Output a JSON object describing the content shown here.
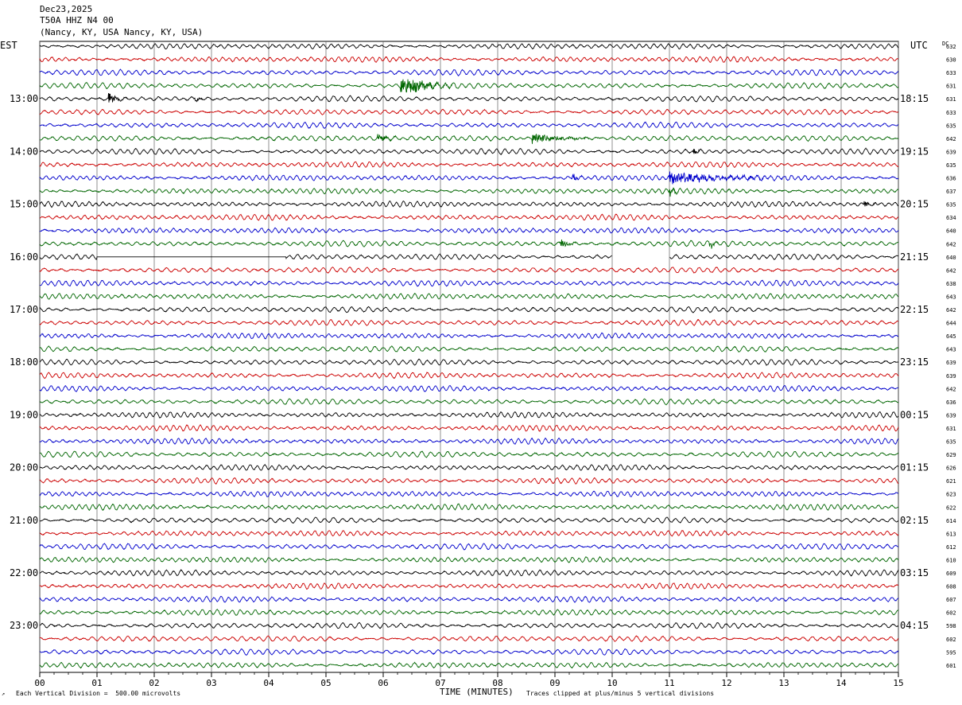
{
  "header": {
    "date": "Dec23,2025",
    "station": "T50A HHZ N4 00",
    "location": "(Nancy, KY, USA Nancy, KY, USA)"
  },
  "left_axis_label": "EST",
  "right_axis_label": "UTC",
  "dc_label": "DC",
  "footer": {
    "scale_note": "Each Vertical Division =  500.00 microvolts",
    "xlabel": "TIME (MINUTES)",
    "clip_note": "Traces clipped at plus/minus 5 vertical divisions"
  },
  "colors": {
    "trace_cycle": [
      "#000000",
      "#cc0000",
      "#0000cc",
      "#006600"
    ],
    "grid": "#606060"
  },
  "chart_data": {
    "type": "line",
    "xlim": [
      0,
      15
    ],
    "x_ticks": [
      "00",
      "01",
      "02",
      "03",
      "04",
      "05",
      "06",
      "07",
      "08",
      "09",
      "10",
      "11",
      "12",
      "13",
      "14",
      "15"
    ],
    "trace_count": 48,
    "left_hour_labels": [
      {
        "row": 4,
        "label": "13:00"
      },
      {
        "row": 8,
        "label": "14:00"
      },
      {
        "row": 12,
        "label": "15:00"
      },
      {
        "row": 16,
        "label": "16:00"
      },
      {
        "row": 20,
        "label": "17:00"
      },
      {
        "row": 24,
        "label": "18:00"
      },
      {
        "row": 28,
        "label": "19:00"
      },
      {
        "row": 32,
        "label": "20:00"
      },
      {
        "row": 36,
        "label": "21:00"
      },
      {
        "row": 40,
        "label": "22:00"
      },
      {
        "row": 44,
        "label": "23:00"
      }
    ],
    "right_hour_labels": [
      {
        "row": 4,
        "label": "18:15"
      },
      {
        "row": 8,
        "label": "19:15"
      },
      {
        "row": 12,
        "label": "20:15"
      },
      {
        "row": 16,
        "label": "21:15"
      },
      {
        "row": 20,
        "label": "22:15"
      },
      {
        "row": 24,
        "label": "23:15"
      },
      {
        "row": 28,
        "label": "00:15"
      },
      {
        "row": 32,
        "label": "01:15"
      },
      {
        "row": 36,
        "label": "02:15"
      },
      {
        "row": 40,
        "label": "03:15"
      },
      {
        "row": 44,
        "label": "04:15"
      }
    ],
    "dc_offsets": [
      632,
      630,
      633,
      631,
      631,
      633,
      635,
      642,
      639,
      635,
      636,
      637,
      635,
      634,
      640,
      642,
      640,
      642,
      638,
      643,
      642,
      644,
      645,
      643,
      639,
      639,
      642,
      636,
      639,
      631,
      635,
      629,
      626,
      621,
      623,
      622,
      614,
      613,
      612,
      610,
      609,
      608,
      607,
      602,
      598,
      602,
      595,
      601
    ],
    "events": [
      {
        "row": 3,
        "start": 6.3,
        "end": 7.3,
        "amp": 3.0
      },
      {
        "row": 4,
        "start": 1.2,
        "end": 1.6,
        "amp": 1.4
      },
      {
        "row": 4,
        "start": 2.7,
        "end": 2.9,
        "amp": 1.0
      },
      {
        "row": 7,
        "start": 5.9,
        "end": 6.3,
        "amp": 1.0
      },
      {
        "row": 7,
        "start": 8.6,
        "end": 9.9,
        "amp": 1.3
      },
      {
        "row": 8,
        "start": 11.4,
        "end": 11.6,
        "amp": 1.2
      },
      {
        "row": 10,
        "start": 9.3,
        "end": 9.5,
        "amp": 1.5
      },
      {
        "row": 10,
        "start": 11.0,
        "end": 13.3,
        "amp": 1.5
      },
      {
        "row": 11,
        "start": 11.0,
        "end": 11.2,
        "amp": 1.8
      },
      {
        "row": 12,
        "start": 14.4,
        "end": 14.7,
        "amp": 1.0
      },
      {
        "row": 15,
        "start": 9.1,
        "end": 9.4,
        "amp": 1.6
      },
      {
        "row": 15,
        "start": 11.7,
        "end": 11.9,
        "amp": 1.3
      }
    ],
    "gaps": [
      {
        "row": 16,
        "start": 1.0,
        "end": 4.3
      },
      {
        "row": 16,
        "start": 10.0,
        "end": 11.0
      }
    ]
  }
}
